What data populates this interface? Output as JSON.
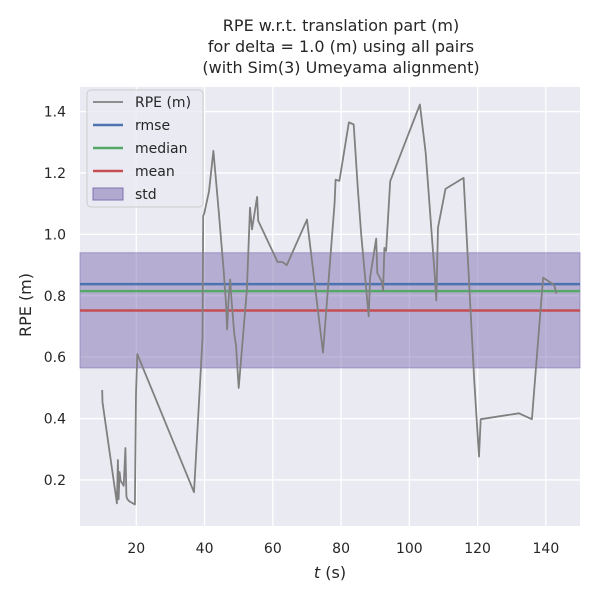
{
  "chart_data": {
    "type": "line",
    "title_lines": [
      "RPE w.r.t. translation part (m)",
      "for delta = 1.0 (m) using all pairs",
      "(with Sim(3) Umeyama alignment)"
    ],
    "xlabel_italic": "t",
    "xlabel_rest": " (s)",
    "ylabel": "RPE (m)",
    "xlim": [
      3.5,
      150
    ],
    "ylim": [
      0.05,
      1.48
    ],
    "xticks": [
      20,
      40,
      60,
      80,
      100,
      120,
      140
    ],
    "yticks": [
      0.2,
      0.4,
      0.6,
      0.8,
      1.0,
      1.2,
      1.4
    ],
    "xtick_labels": [
      "20",
      "40",
      "60",
      "80",
      "100",
      "120",
      "140"
    ],
    "ytick_labels": [
      "0.2",
      "0.4",
      "0.6",
      "0.8",
      "1.0",
      "1.2",
      "1.4"
    ],
    "grid": true,
    "legend_position": "upper-left",
    "legend": [
      {
        "label": "RPE (m)",
        "kind": "line",
        "color": "#808080"
      },
      {
        "label": "rmse",
        "kind": "line",
        "color": "#4c72b0"
      },
      {
        "label": "median",
        "kind": "line",
        "color": "#55a868"
      },
      {
        "label": "mean",
        "kind": "line",
        "color": "#c44e52"
      },
      {
        "label": "std",
        "kind": "patch",
        "color": "#8172b2"
      }
    ],
    "stats": {
      "rmse": 0.838,
      "median": 0.815,
      "mean": 0.752,
      "std_low": 0.565,
      "std_high": 0.94
    },
    "series": [
      {
        "name": "RPE (m)",
        "color": "#808080",
        "x": [
          10.0,
          10.1,
          14.3,
          14.6,
          14.8,
          15.1,
          15.4,
          16.3,
          16.8,
          17.1,
          17.4,
          18.0,
          19.6,
          19.9,
          20.3,
          36.9,
          39.4,
          39.6,
          39.9,
          41.3,
          42.6,
          44.1,
          45.6,
          46.3,
          46.6,
          47.1,
          47.5,
          47.9,
          48.7,
          49.2,
          50.0,
          52.4,
          53.3,
          53.9,
          55.4,
          55.7,
          61.4,
          62.8,
          64.1,
          70.0,
          74.7,
          78.1,
          78.4,
          79.5,
          82.3,
          83.7,
          84.9,
          85.9,
          88.1,
          88.5,
          90.3,
          90.6,
          91.9,
          92.3,
          92.7,
          93.2,
          94.4,
          103.1,
          104.8,
          107.5,
          107.9,
          108.4,
          110.6,
          115.9,
          119.0,
          120.4,
          120.9,
          132.1,
          135.9,
          139.2,
          142.4,
          143.1
        ],
        "y": [
          0.493,
          0.453,
          0.124,
          0.265,
          0.137,
          0.226,
          0.198,
          0.181,
          0.304,
          0.146,
          0.137,
          0.13,
          0.12,
          0.48,
          0.61,
          0.16,
          0.66,
          1.06,
          1.068,
          1.14,
          1.272,
          1.08,
          0.88,
          0.77,
          0.69,
          0.8,
          0.853,
          0.787,
          0.675,
          0.64,
          0.5,
          0.82,
          1.087,
          1.016,
          1.122,
          1.044,
          0.91,
          0.91,
          0.9,
          1.048,
          0.615,
          1.102,
          1.178,
          1.174,
          1.365,
          1.358,
          1.15,
          1.0,
          0.733,
          0.86,
          0.986,
          0.874,
          0.847,
          0.817,
          0.956,
          0.946,
          1.173,
          1.423,
          1.265,
          0.86,
          0.785,
          1.022,
          1.148,
          1.184,
          0.526,
          0.276,
          0.398,
          0.417,
          0.398,
          0.859,
          0.835,
          0.807
        ]
      }
    ]
  }
}
